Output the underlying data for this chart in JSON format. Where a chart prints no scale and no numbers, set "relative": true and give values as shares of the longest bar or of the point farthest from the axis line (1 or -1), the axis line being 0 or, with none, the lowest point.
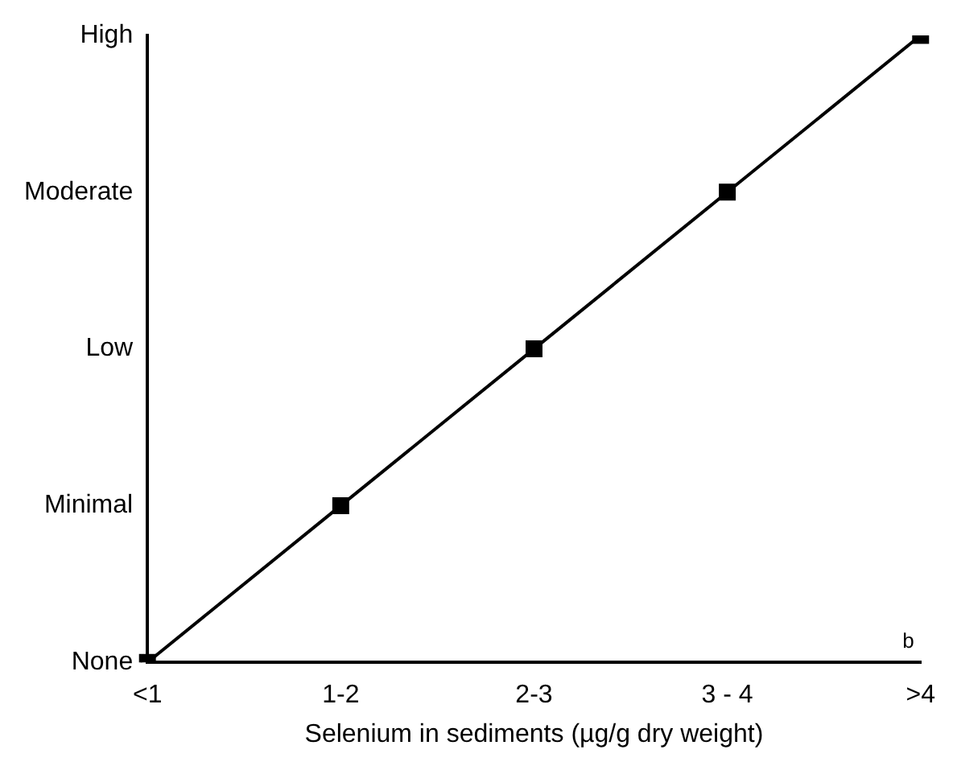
{
  "chart_data": {
    "type": "line",
    "categories": [
      "<1",
      "1-2",
      "2-3",
      "3 - 4",
      ">4"
    ],
    "y_categories": [
      "High",
      "Moderate",
      "Low",
      "Minimal",
      "None"
    ],
    "relative": true,
    "series": [
      {
        "color": "#000000",
        "values": [
          0,
          0.25,
          0.5,
          0.75,
          1
        ]
      }
    ],
    "xlabel": "Selenium in sediments (µg/g dry weight)",
    "annotations": [
      "b"
    ],
    "legend": false,
    "marker": "square",
    "line_style": "solid"
  }
}
